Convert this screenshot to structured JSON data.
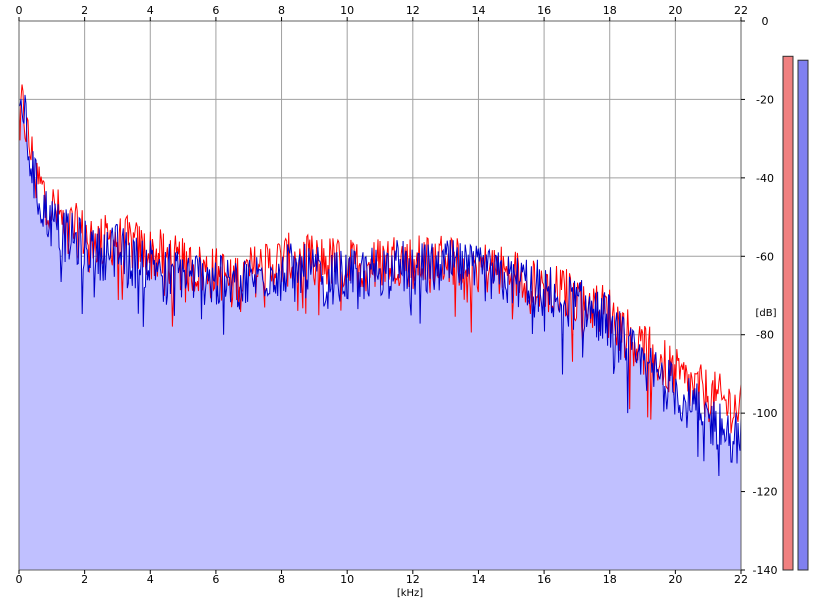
{
  "chart_data": {
    "type": "area",
    "xlabel": "[kHz]",
    "ylabel": "[dB]",
    "xlim": [
      0,
      22
    ],
    "ylim": [
      -140,
      0
    ],
    "x_ticks": [
      "0",
      "2",
      "4",
      "6",
      "8",
      "10",
      "12",
      "14",
      "16",
      "18",
      "20",
      "22"
    ],
    "y_ticks": [
      "0",
      "-20",
      "-40",
      "-60",
      "-80",
      "-100",
      "-120",
      "-140"
    ],
    "grid": true,
    "series": [
      {
        "color": "#ff0000",
        "envelope": {
          "x": [
            0,
            0.1,
            0.3,
            0.6,
            1,
            1.5,
            2,
            2.5,
            3,
            3.5,
            4,
            4.5,
            5,
            5.5,
            6,
            6.5,
            7,
            7.5,
            8,
            8.5,
            9,
            9.5,
            10,
            10.5,
            11,
            11.5,
            12,
            12.5,
            13,
            13.5,
            14,
            14.5,
            15,
            15.5,
            16,
            16.5,
            17,
            17.5,
            18,
            18.5,
            19,
            19.5,
            20,
            20.5,
            21,
            21.5,
            22
          ],
          "y": [
            -22,
            -20,
            -30,
            -40,
            -46,
            -51,
            -53,
            -55,
            -54,
            -56,
            -58,
            -59,
            -61,
            -62,
            -63,
            -64,
            -63,
            -61,
            -60,
            -59,
            -60,
            -60,
            -61,
            -61,
            -60,
            -59,
            -60,
            -60,
            -59,
            -60,
            -61,
            -62,
            -63,
            -64,
            -66,
            -68,
            -69,
            -71,
            -73,
            -78,
            -82,
            -85,
            -89,
            -92,
            -94,
            -96,
            -98
          ]
        }
      },
      {
        "color": "#0000c8",
        "envelope": {
          "x": [
            0,
            0.1,
            0.3,
            0.6,
            1,
            1.5,
            2,
            2.5,
            3,
            3.5,
            4,
            4.5,
            5,
            5.5,
            6,
            6.5,
            7,
            7.5,
            8,
            8.5,
            9,
            9.5,
            10,
            10.5,
            11,
            11.5,
            12,
            12.5,
            13,
            13.5,
            14,
            14.5,
            15,
            15.5,
            16,
            16.5,
            17,
            17.5,
            18,
            18.5,
            19,
            19.5,
            20,
            20.5,
            21,
            21.5,
            22
          ],
          "y": [
            -24,
            -18,
            -32,
            -44,
            -50,
            -54,
            -56,
            -58,
            -57,
            -60,
            -60,
            -61,
            -63,
            -64,
            -65,
            -66,
            -65,
            -63,
            -62,
            -62,
            -63,
            -64,
            -64,
            -63,
            -62,
            -61,
            -62,
            -62,
            -61,
            -62,
            -63,
            -64,
            -65,
            -65,
            -67,
            -69,
            -71,
            -73,
            -75,
            -82,
            -87,
            -89,
            -93,
            -97,
            -100,
            -103,
            -106
          ]
        }
      }
    ],
    "fill_color": "#c0c0ff",
    "level_meters": [
      {
        "color": "#f08080",
        "top_db": -9,
        "bottom_db": -140
      },
      {
        "color": "#8080f0",
        "top_db": -10,
        "bottom_db": -140
      }
    ]
  }
}
